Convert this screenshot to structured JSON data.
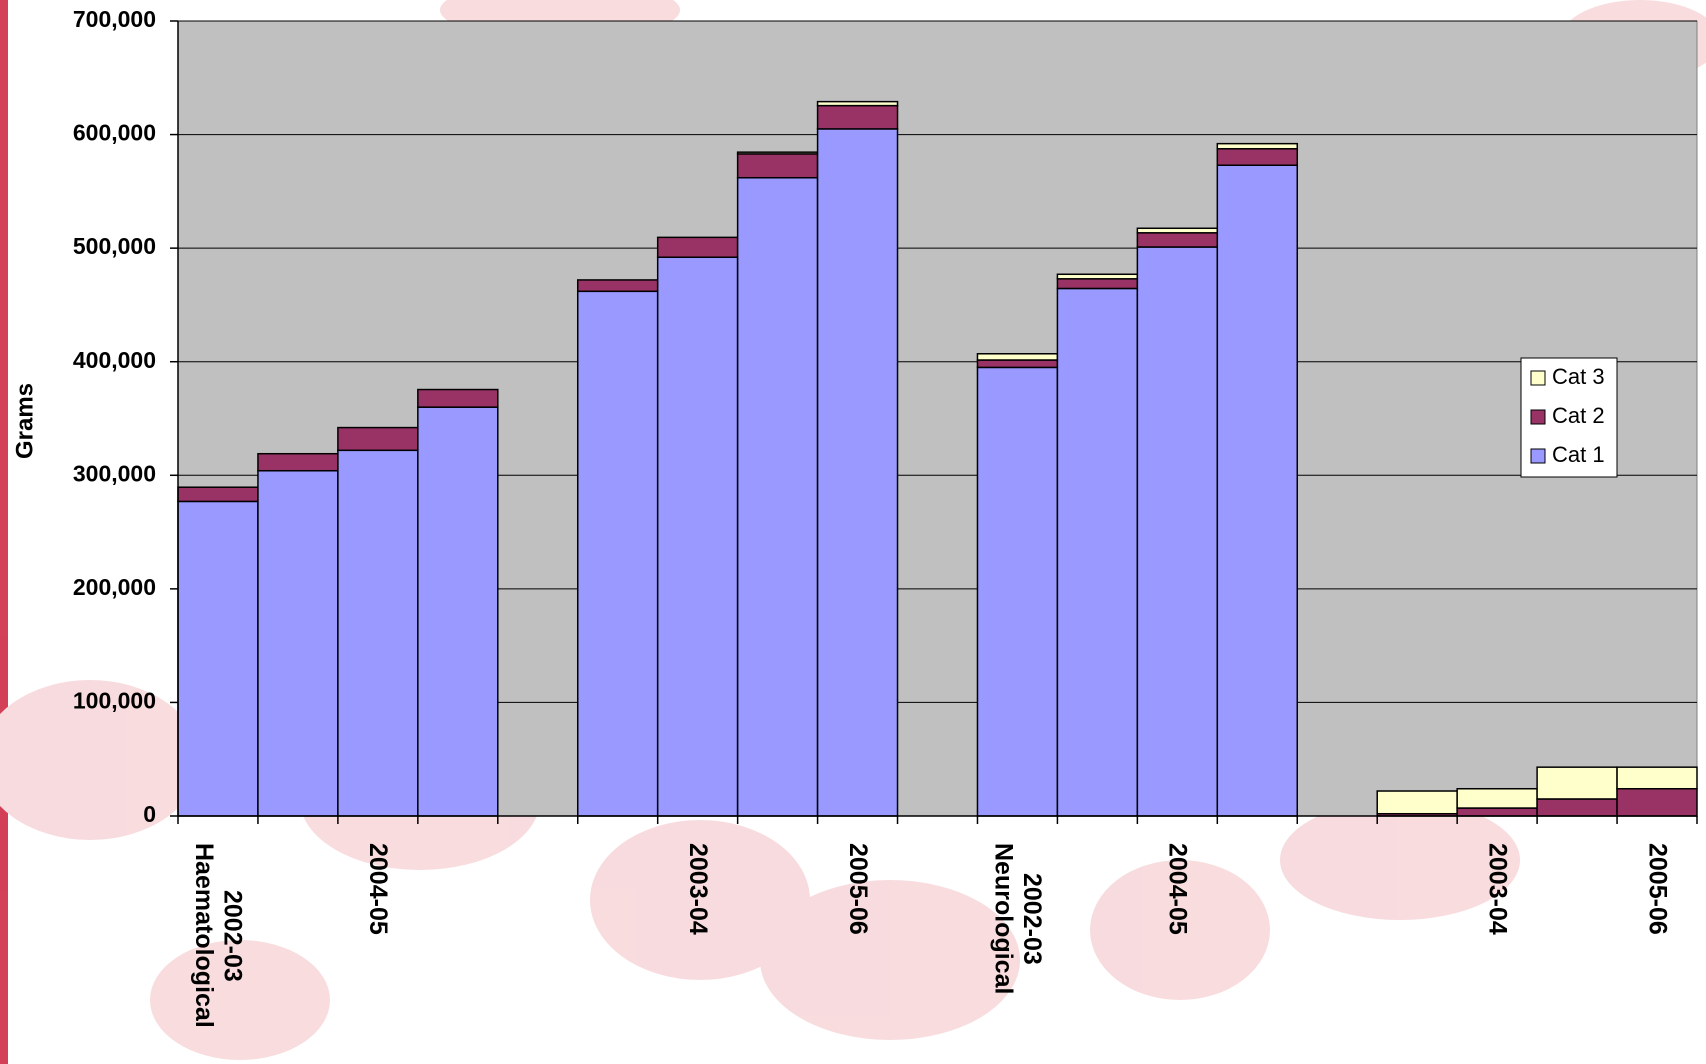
{
  "chart_data": {
    "type": "bar",
    "stacked": true,
    "y_label": "Grams",
    "categories": [
      "2002-03\nHaematological",
      null,
      "2004-05",
      null,
      null,
      null,
      "2003-04",
      null,
      "2005-06",
      null,
      "2002-03\nNeurological",
      null,
      "2004-05",
      null,
      null,
      null,
      "2003-04",
      null,
      "2005-06"
    ],
    "series": [
      {
        "name": "Cat 1",
        "color": "#9999ff",
        "values": [
          277000,
          304000,
          322000,
          360000,
          null,
          462000,
          492000,
          562000,
          605000,
          null,
          395000,
          464500,
          501000,
          573000,
          null,
          0,
          0,
          0,
          0
        ]
      },
      {
        "name": "Cat 2",
        "color": "#993366",
        "values": [
          12500,
          15000,
          20000,
          15500,
          null,
          10000,
          17500,
          21000,
          20500,
          null,
          6500,
          8500,
          12500,
          14500,
          null,
          2000,
          7000,
          15000,
          24000
        ]
      },
      {
        "name": "Cat 3",
        "color": "#ffffcc",
        "values": [
          0,
          0,
          0,
          0,
          null,
          0,
          0,
          1500,
          3500,
          null,
          5500,
          4000,
          4000,
          4500,
          null,
          20000,
          17000,
          28000,
          19000
        ]
      }
    ],
    "ylim": [
      0,
      700000
    ],
    "yticks": [
      0,
      {
        "value": 100000,
        "label": "100,000"
      },
      {
        "value": 200000,
        "label": "200,000"
      },
      {
        "value": 300000,
        "label": "300,000"
      },
      {
        "value": 400000,
        "label": "400,000"
      },
      {
        "value": 500000,
        "label": "500,000"
      },
      {
        "value": 600000,
        "label": "600,000"
      },
      {
        "value": 700000,
        "label": "700,000"
      }
    ],
    "grid": true,
    "plot_background": "#c0c0c0",
    "legend": "right"
  }
}
